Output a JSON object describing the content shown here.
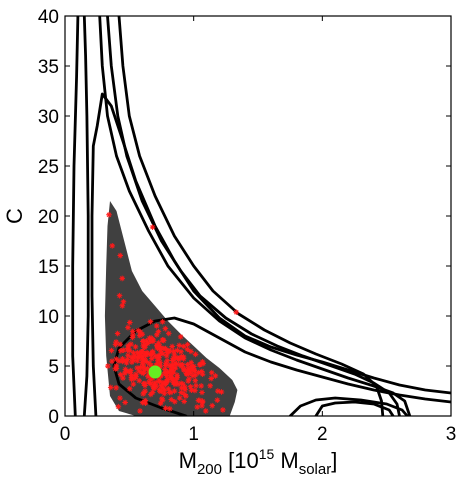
{
  "chart_data": {
    "type": "scatter",
    "title": "",
    "xlabel": {
      "base": "M",
      "base_sub": "200",
      "bracket_open": " [10",
      "exp": "15",
      "unit": " M",
      "unit_sub": "solar",
      "bracket_close": "]"
    },
    "ylabel": "C",
    "xlim": [
      0,
      3
    ],
    "ylim": [
      0,
      40
    ],
    "xticks": [
      0,
      1,
      2,
      3
    ],
    "xtick_labels": [
      "0",
      "1",
      "2",
      "3"
    ],
    "yticks": [
      0,
      5,
      10,
      15,
      20,
      25,
      30,
      35,
      40
    ],
    "ytick_labels": [
      "0",
      "5",
      "10",
      "15",
      "20",
      "25",
      "30",
      "35",
      "40"
    ],
    "grid": false,
    "legend": "none",
    "colors": {
      "region_fill": "#404040",
      "contour": "#000000",
      "samples": "#ff1a1a",
      "best_fit": "#66ee22"
    },
    "shaded_region": [
      [
        0.35,
        21.5
      ],
      [
        0.4,
        20.5
      ],
      [
        0.46,
        17.5
      ],
      [
        0.52,
        14.5
      ],
      [
        0.6,
        12.5
      ],
      [
        0.7,
        11.0
      ],
      [
        0.8,
        9.5
      ],
      [
        0.9,
        8.2
      ],
      [
        1.0,
        7.0
      ],
      [
        1.1,
        5.8
      ],
      [
        1.2,
        4.8
      ],
      [
        1.3,
        3.6
      ],
      [
        1.34,
        2.6
      ],
      [
        1.32,
        1.4
      ],
      [
        1.28,
        0.0
      ],
      [
        0.9,
        0.0
      ],
      [
        0.55,
        0.0
      ],
      [
        0.42,
        0.5
      ],
      [
        0.35,
        2.0
      ],
      [
        0.32,
        6.0
      ],
      [
        0.31,
        10.0
      ],
      [
        0.32,
        15.0
      ],
      [
        0.33,
        19.0
      ]
    ],
    "contours": [
      {
        "points": [
          [
            0.15,
            0.0
          ],
          [
            0.17,
            4.0
          ],
          [
            0.18,
            10.0
          ],
          [
            0.18,
            20.0
          ],
          [
            0.17,
            30.0
          ],
          [
            0.16,
            36.0
          ],
          [
            0.15,
            40.0
          ]
        ]
      },
      {
        "points": [
          [
            0.1,
            40.0
          ],
          [
            0.09,
            34.0
          ],
          [
            0.07,
            25.0
          ],
          [
            0.06,
            15.0
          ],
          [
            0.06,
            6.0
          ],
          [
            0.08,
            0.0
          ]
        ]
      },
      {
        "points": [
          [
            0.24,
            0.0
          ],
          [
            0.22,
            5.0
          ],
          [
            0.21,
            12.0
          ],
          [
            0.21,
            20.0
          ],
          [
            0.22,
            27.0
          ],
          [
            0.25,
            29.0
          ],
          [
            0.29,
            32.2
          ],
          [
            0.36,
            31.0
          ],
          [
            0.45,
            27.5
          ],
          [
            0.55,
            23.5
          ],
          [
            0.7,
            19.0
          ],
          [
            0.85,
            15.5
          ],
          [
            1.0,
            12.5
          ],
          [
            1.2,
            9.8
          ],
          [
            1.4,
            8.0
          ],
          [
            1.6,
            6.9
          ],
          [
            1.8,
            6.1
          ],
          [
            2.0,
            5.4
          ],
          [
            2.2,
            4.6
          ],
          [
            2.4,
            3.8
          ],
          [
            2.6,
            3.1
          ],
          [
            2.8,
            2.6
          ],
          [
            3.0,
            2.3
          ]
        ]
      },
      {
        "points": [
          [
            0.27,
            40.0
          ],
          [
            0.29,
            35.0
          ],
          [
            0.33,
            30.0
          ],
          [
            0.4,
            26.0
          ],
          [
            0.5,
            22.5
          ],
          [
            0.65,
            18.5
          ],
          [
            0.8,
            15.0
          ],
          [
            1.0,
            11.8
          ],
          [
            1.2,
            9.5
          ],
          [
            1.4,
            7.8
          ],
          [
            1.6,
            6.6
          ],
          [
            1.8,
            5.6
          ],
          [
            2.0,
            4.7
          ],
          [
            2.2,
            3.8
          ],
          [
            2.4,
            3.0
          ],
          [
            2.55,
            2.3
          ],
          [
            2.64,
            1.5
          ],
          [
            2.68,
            0.0
          ]
        ]
      },
      {
        "points": [
          [
            0.33,
            40.0
          ],
          [
            0.36,
            35.0
          ],
          [
            0.41,
            30.0
          ],
          [
            0.48,
            26.0
          ],
          [
            0.6,
            21.5
          ],
          [
            0.75,
            17.5
          ],
          [
            0.9,
            14.5
          ],
          [
            1.05,
            12.0
          ],
          [
            1.25,
            9.8
          ],
          [
            1.45,
            8.2
          ],
          [
            1.65,
            7.0
          ],
          [
            1.85,
            6.0
          ],
          [
            2.05,
            5.1
          ],
          [
            2.25,
            4.2
          ],
          [
            2.4,
            3.3
          ],
          [
            2.52,
            2.3
          ],
          [
            2.58,
            1.2
          ],
          [
            2.6,
            0.0
          ]
        ]
      },
      {
        "points": [
          [
            0.42,
            40.0
          ],
          [
            0.45,
            35.0
          ],
          [
            0.5,
            30.0
          ],
          [
            0.58,
            26.0
          ],
          [
            0.7,
            22.0
          ],
          [
            0.85,
            18.0
          ],
          [
            1.0,
            15.0
          ],
          [
            1.15,
            12.5
          ],
          [
            1.35,
            10.2
          ],
          [
            1.55,
            8.6
          ],
          [
            1.75,
            7.3
          ],
          [
            1.95,
            6.2
          ],
          [
            2.15,
            5.2
          ],
          [
            2.32,
            4.2
          ],
          [
            2.42,
            3.0
          ],
          [
            2.46,
            1.5
          ],
          [
            2.47,
            0.0
          ]
        ]
      },
      {
        "points": [
          [
            0.94,
            0.0
          ],
          [
            0.75,
            0.8
          ],
          [
            0.55,
            1.8
          ],
          [
            0.42,
            3.2
          ],
          [
            0.38,
            5.0
          ],
          [
            0.42,
            6.8
          ],
          [
            0.55,
            8.5
          ],
          [
            0.7,
            9.5
          ],
          [
            0.85,
            9.8
          ],
          [
            1.0,
            9.2
          ],
          [
            1.2,
            7.8
          ],
          [
            1.4,
            6.4
          ],
          [
            1.6,
            5.4
          ],
          [
            1.8,
            4.6
          ],
          [
            2.0,
            3.9
          ],
          [
            2.2,
            3.2
          ],
          [
            2.4,
            2.6
          ],
          [
            2.6,
            2.1
          ],
          [
            2.8,
            1.7
          ],
          [
            3.0,
            1.4
          ]
        ]
      },
      {
        "points": [
          [
            1.75,
            0.0
          ],
          [
            1.83,
            1.0
          ],
          [
            1.95,
            1.6
          ],
          [
            2.1,
            1.8
          ],
          [
            2.3,
            1.6
          ],
          [
            2.5,
            1.2
          ],
          [
            2.62,
            0.6
          ],
          [
            2.66,
            0.0
          ]
        ]
      },
      {
        "points": [
          [
            1.95,
            0.0
          ],
          [
            2.0,
            1.0
          ],
          [
            2.1,
            1.3
          ],
          [
            2.25,
            1.4
          ],
          [
            2.4,
            1.2
          ],
          [
            2.52,
            0.6
          ],
          [
            2.55,
            0.0
          ]
        ]
      }
    ],
    "samples_stats": {
      "count": 340,
      "x_range": [
        0.32,
        1.38
      ],
      "y_range": [
        0.5,
        22.0
      ],
      "center": [
        0.75,
        4.5
      ]
    },
    "best_fit": {
      "x": 0.7,
      "y": 4.4
    }
  }
}
